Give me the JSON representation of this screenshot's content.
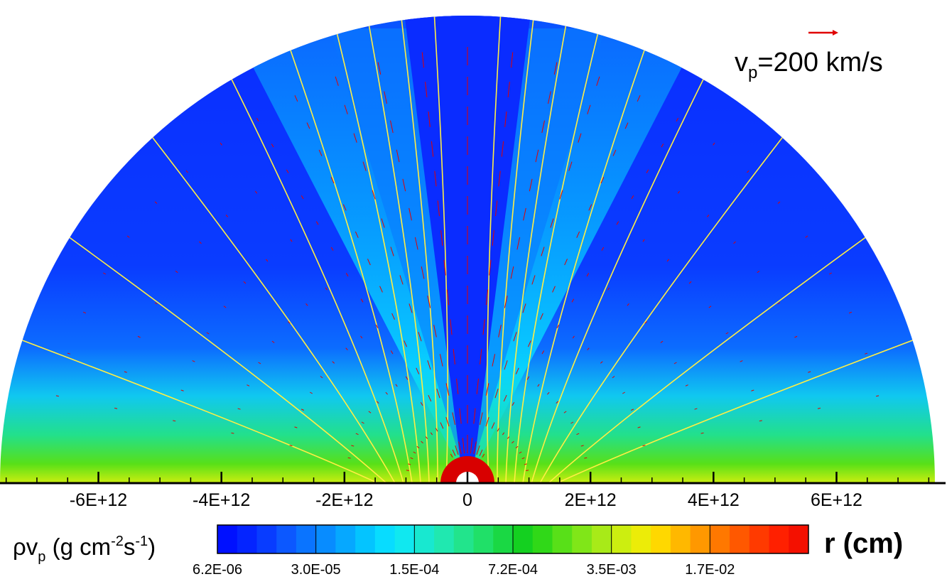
{
  "chart_data": {
    "type": "heatmap",
    "description_kind": "half-disk contour map with streamlines and velocity vectors",
    "xlabel": "r (cm)",
    "xlim": [
      -7600000000000.0,
      7600000000000.0
    ],
    "x_ticks": [
      {
        "value": -6000000000000.0,
        "label": "-6E+12"
      },
      {
        "value": -4000000000000.0,
        "label": "-4E+12"
      },
      {
        "value": -2000000000000.0,
        "label": "-2E+12"
      },
      {
        "value": 0,
        "label": "0"
      },
      {
        "value": 2000000000000.0,
        "label": "2E+12"
      },
      {
        "value": 4000000000000.0,
        "label": "4E+12"
      },
      {
        "value": 6000000000000.0,
        "label": "6E+12"
      }
    ],
    "colorbar": {
      "title_main": "ρv",
      "title_sub": "p",
      "title_units_a": " (g cm",
      "title_exp_a": "-2",
      "title_units_b": "s",
      "title_exp_b": "-1",
      "title_close": ")",
      "scale": "log",
      "range": [
        6.2e-06,
        0.035
      ],
      "tick_labels": [
        "6.2E-06",
        "3.0E-05",
        "1.5E-04",
        "7.2E-04",
        "3.5E-03",
        "1.7E-02"
      ],
      "colors": [
        "#0010ff",
        "#0424ff",
        "#083cff",
        "#0c58ff",
        "#0a74ff",
        "#088cff",
        "#06a8ff",
        "#04c4ff",
        "#08dcff",
        "#10e8f0",
        "#18e8d0",
        "#20e8b0",
        "#22e48c",
        "#20e068",
        "#1ad844",
        "#14d020",
        "#30d818",
        "#58e018",
        "#80e618",
        "#a8ea18",
        "#ccee10",
        "#ecec08",
        "#ffd800",
        "#ffb800",
        "#ff9800",
        "#ff7800",
        "#ff5800",
        "#ff3a00",
        "#ff2000",
        "#f41000"
      ],
      "major_boundaries_every": 5
    },
    "vector_legend": {
      "label_v": "v",
      "label_sub": "p",
      "label_rest": "=200 km/s",
      "color": "#e00000"
    },
    "streamline_color": "#ffee44",
    "vector_color": "#e00000"
  }
}
